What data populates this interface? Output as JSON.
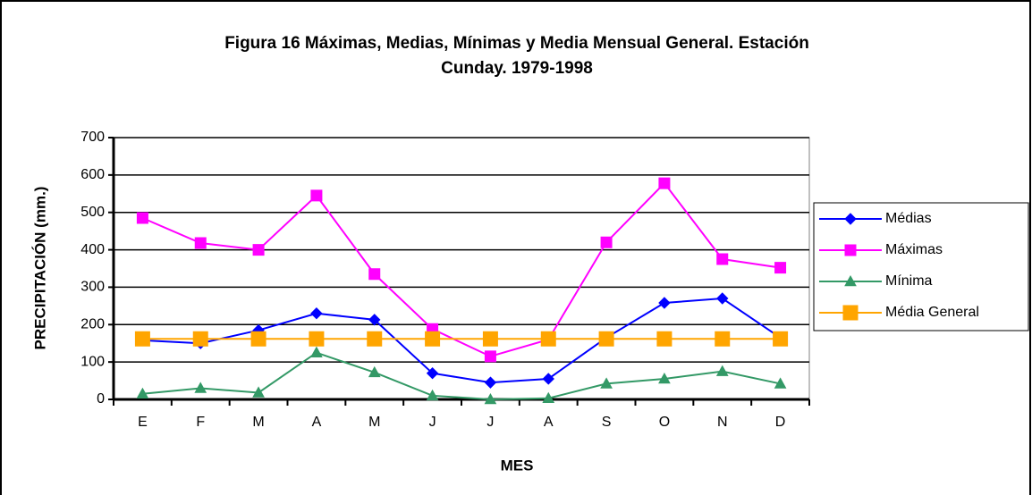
{
  "chart_data": {
    "type": "line",
    "title": [
      "Figura 16  Máximas, Medias, Mínimas y Media Mensual General.  Estación",
      "Cunday. 1979-1998"
    ],
    "x_label": "MES",
    "y_label": "PRECIPITACIÓN (mm.)",
    "categories": [
      "E",
      "F",
      "M",
      "A",
      "M",
      "J",
      "J",
      "A",
      "S",
      "O",
      "N",
      "D"
    ],
    "ylim": [
      0,
      700
    ],
    "yticks": [
      0,
      100,
      200,
      300,
      400,
      500,
      600,
      700
    ],
    "grid": true,
    "legend": "right",
    "series": [
      {
        "name": "Médias",
        "color": "#0000ff",
        "marker": "diamond",
        "values": [
          158,
          150,
          185,
          230,
          213,
          70,
          45,
          55,
          165,
          258,
          270,
          165
        ]
      },
      {
        "name": "Máximas",
        "color": "#ff00ff",
        "marker": "square",
        "values": [
          485,
          418,
          400,
          545,
          335,
          188,
          115,
          160,
          420,
          578,
          375,
          352
        ]
      },
      {
        "name": "Mínima",
        "color": "#339966",
        "marker": "triangle",
        "values": [
          15,
          30,
          18,
          125,
          72,
          10,
          0,
          3,
          42,
          55,
          75,
          42
        ]
      },
      {
        "name": "Média General",
        "color": "#ffa500",
        "marker": "square",
        "values": [
          162,
          162,
          162,
          162,
          162,
          162,
          162,
          162,
          162,
          162,
          162,
          162
        ]
      }
    ]
  }
}
